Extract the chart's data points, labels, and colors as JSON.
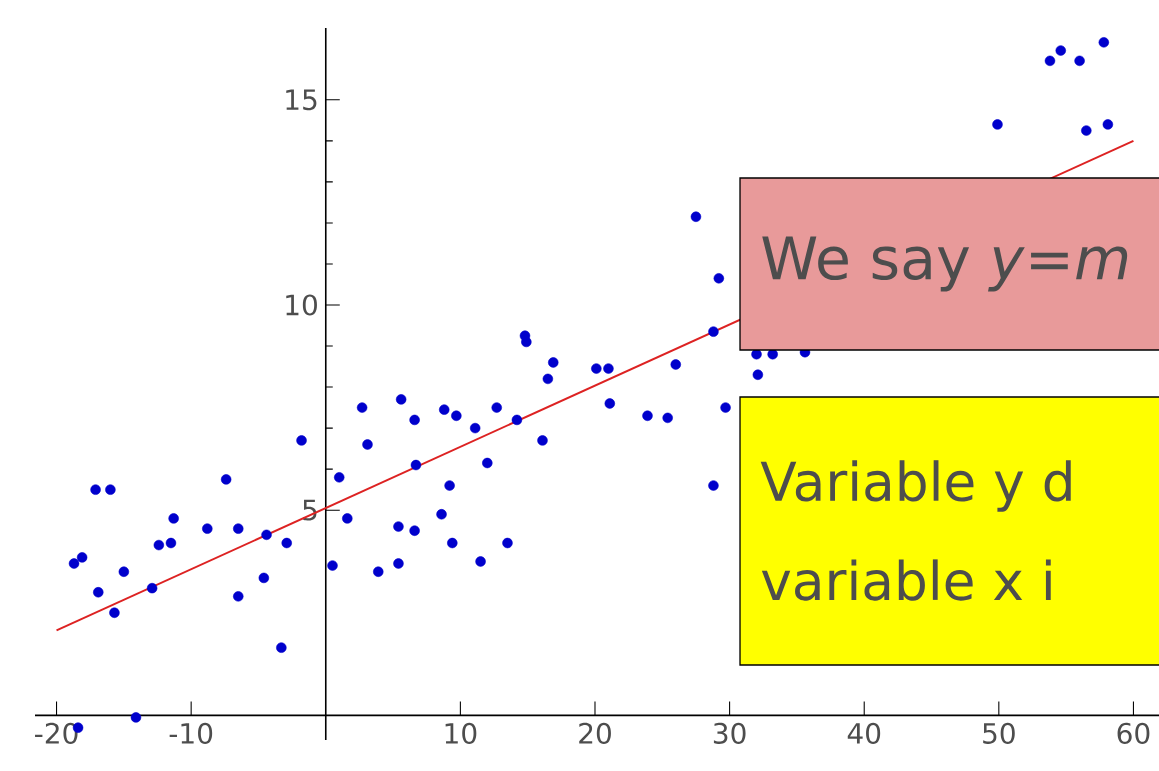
{
  "chart_data": {
    "type": "scatter",
    "xlim": [
      -21.6,
      61.9
    ],
    "ylim": [
      -0.6,
      16.75
    ],
    "xticks": [
      -20,
      -10,
      10,
      20,
      30,
      40,
      50,
      60
    ],
    "yticks": [
      5,
      10,
      15
    ],
    "series": [
      {
        "color": "#0000cc",
        "x": [
          -18.7,
          -18.1,
          -17.1,
          -16.0,
          -15.0,
          -16.9,
          -15.7,
          -12.9,
          -12.4,
          -11.5,
          -11.3,
          -8.8,
          -7.4,
          -6.5,
          -6.5,
          -4.6,
          -4.4,
          -3.3,
          -2.9,
          -1.8,
          -14.1,
          -18.4,
          1.0,
          0.5,
          1.6,
          2.7,
          3.1,
          3.9,
          5.4,
          5.4,
          5.6,
          6.6,
          6.6,
          6.7,
          8.6,
          8.8,
          9.2,
          9.4,
          9.7,
          11.1,
          11.5,
          12.0,
          12.7,
          13.5,
          14.2,
          14.8,
          14.9,
          16.1,
          16.5,
          16.9,
          20.1,
          21.0,
          21.1,
          23.9,
          25.4,
          26.0,
          28.8,
          28.8,
          29.7,
          27.5,
          29.2,
          32.0,
          33.2,
          35.6,
          32.1,
          49.9,
          53.8,
          54.6,
          56.0,
          57.8,
          56.5,
          58.1
        ],
        "values": [
          3.7,
          3.85,
          5.5,
          5.5,
          3.5,
          3.0,
          2.5,
          3.1,
          4.15,
          4.2,
          4.8,
          4.55,
          5.75,
          4.55,
          2.9,
          3.35,
          4.4,
          1.65,
          4.2,
          6.7,
          -0.05,
          -0.3,
          5.8,
          3.65,
          4.8,
          7.5,
          6.6,
          3.5,
          3.7,
          4.6,
          7.7,
          7.2,
          4.5,
          6.1,
          4.9,
          7.45,
          5.6,
          4.2,
          7.3,
          7.0,
          3.75,
          6.15,
          7.5,
          4.2,
          7.2,
          9.25,
          9.1,
          6.7,
          8.2,
          8.6,
          8.45,
          8.45,
          7.6,
          7.3,
          7.25,
          8.55,
          9.35,
          5.6,
          7.5,
          12.15,
          10.65,
          8.8,
          8.8,
          8.85,
          8.3,
          14.4,
          15.95,
          16.2,
          15.95,
          16.4,
          14.25,
          14.4
        ]
      },
      {
        "type": "line",
        "color": "#dd2222",
        "x": [
          -20,
          60
        ],
        "values": [
          2.07,
          14.0
        ]
      }
    ],
    "annotations": [
      "We say *y*=*m*",
      "Variable y d",
      "variable x i"
    ]
  }
}
